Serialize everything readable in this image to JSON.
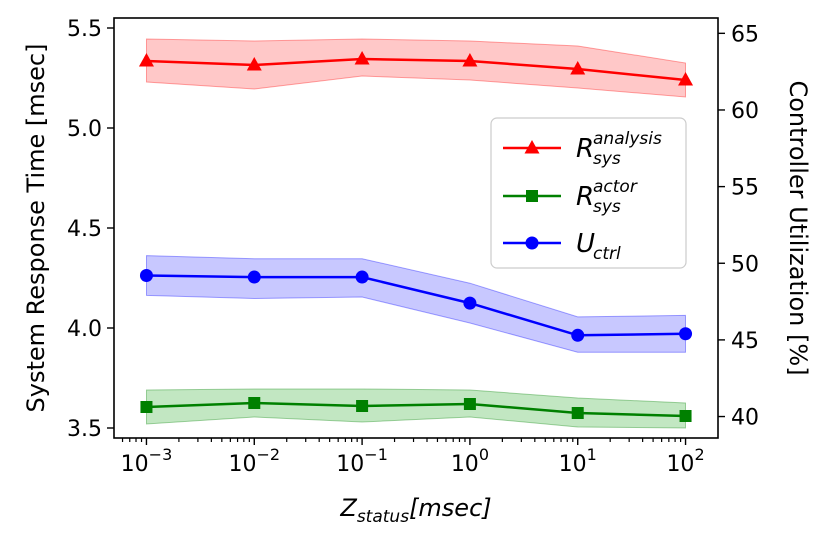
{
  "chart_data": {
    "type": "line",
    "x": [
      0.001,
      0.01,
      0.1,
      1,
      10,
      100
    ],
    "xscale": "log",
    "xlim": [
      0.0005,
      200
    ],
    "x_ticks": [
      {
        "base": "10",
        "exp": "−3"
      },
      {
        "base": "10",
        "exp": "−2"
      },
      {
        "base": "10",
        "exp": "−1"
      },
      {
        "base": "10",
        "exp": "0"
      },
      {
        "base": "10",
        "exp": "1"
      },
      {
        "base": "10",
        "exp": "2"
      }
    ],
    "xlabel": {
      "main": "Z",
      "sub": "status",
      "unit": "[msec]"
    },
    "ylabel": "System Response Time [msec]",
    "ylim": [
      3.45,
      5.55
    ],
    "y_ticks": [
      "3.5",
      "4.0",
      "4.5",
      "5.0",
      "5.5"
    ],
    "y2label": "Controller Utilization [%]",
    "y2lim": [
      38.6,
      66
    ],
    "y2_ticks": [
      "40",
      "45",
      "50",
      "55",
      "60",
      "65"
    ],
    "legend_position": "center-right",
    "series": [
      {
        "name": {
          "main": "R",
          "sub": "sys",
          "sup": "analysis"
        },
        "axis": "left",
        "color": "#ff0000",
        "band_color": "#ff9a9a",
        "marker": "triangle",
        "values": [
          5.335,
          5.315,
          5.345,
          5.335,
          5.295,
          5.24
        ],
        "lower": [
          5.23,
          5.195,
          5.26,
          5.24,
          5.2,
          5.155
        ],
        "upper": [
          5.445,
          5.435,
          5.445,
          5.435,
          5.41,
          5.325
        ]
      },
      {
        "name": {
          "main": "R",
          "sub": "sys",
          "sup": "actor"
        },
        "axis": "left",
        "color": "#008000",
        "band_color": "#8fd48f",
        "marker": "square",
        "values": [
          3.605,
          3.625,
          3.61,
          3.62,
          3.575,
          3.56
        ],
        "lower": [
          3.52,
          3.555,
          3.53,
          3.555,
          3.505,
          3.5
        ],
        "upper": [
          3.69,
          3.695,
          3.695,
          3.69,
          3.65,
          3.625
        ]
      },
      {
        "name": {
          "main": "U",
          "sub": "ctrl",
          "sup": ""
        },
        "axis": "right",
        "color": "#0000ff",
        "band_color": "#9a9aff",
        "marker": "circle",
        "values": [
          49.2,
          49.1,
          49.1,
          47.4,
          45.3,
          45.4
        ],
        "lower": [
          47.9,
          47.7,
          47.8,
          46.1,
          44.2,
          44.2
        ],
        "upper": [
          50.5,
          50.3,
          50.3,
          48.7,
          46.5,
          46.6
        ]
      }
    ]
  }
}
